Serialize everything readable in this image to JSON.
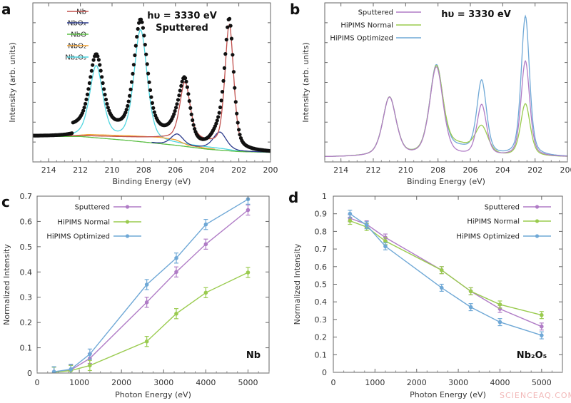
{
  "watermark": "SCIENCEAQ.COM",
  "chart_data": [
    {
      "panel": "a",
      "type": "line",
      "xlabel": "Binding Energy (eV)",
      "ylabel": "Intensity (arb. units)",
      "xlim": [
        215,
        200
      ],
      "x_reversed": true,
      "ylim": [
        0,
        1
      ],
      "x_ticks": [
        "214",
        "212",
        "210",
        "208",
        "206",
        "204",
        "202",
        "200"
      ],
      "annotations": [
        "hυ = 3330 eV",
        "Sputtered"
      ],
      "grid": false,
      "legend": "top-left",
      "measured_markers": {
        "color": "#111111",
        "style": "filled circles"
      },
      "series": [
        {
          "name": "Nb",
          "color": "#c0504d",
          "range": [
            215,
            200
          ],
          "baseline": [
            [
              215,
              0.16
            ],
            [
              212,
              0.165
            ],
            [
              207,
              0.15
            ],
            [
              204.5,
              0.13
            ],
            [
              202,
              0.065
            ],
            [
              200,
              0.06
            ]
          ],
          "peaks": [
            [
              205.4,
              0.36,
              0.33
            ],
            [
              202.6,
              0.78,
              0.28
            ]
          ]
        },
        {
          "name": "NbOₓ",
          "color": "#2b3a8c",
          "range": [
            207.5,
            200
          ],
          "baseline": [
            [
              207.5,
              0.12
            ],
            [
              206,
              0.1
            ],
            [
              204,
              0.085
            ],
            [
              202,
              0.065
            ],
            [
              200,
              0.06
            ]
          ],
          "peaks": [
            [
              205.9,
              0.075,
              0.4
            ],
            [
              203.2,
              0.11,
              0.42
            ]
          ]
        },
        {
          "name": "NbO",
          "color": "#5cbf45",
          "range": [
            215,
            200
          ],
          "baseline": [
            [
              215,
              0.16
            ],
            [
              212,
              0.16
            ],
            [
              209,
              0.135
            ],
            [
              206,
              0.105
            ],
            [
              204,
              0.08
            ],
            [
              202,
              0.065
            ],
            [
              200,
              0.06
            ]
          ],
          "peaks": []
        },
        {
          "name": "NbO₂",
          "color": "#f0a030",
          "range": [
            212.5,
            203.5
          ],
          "baseline": [
            [
              212.5,
              0.165
            ],
            [
              211.5,
              0.172
            ],
            [
              209,
              0.165
            ],
            [
              207,
              0.155
            ],
            [
              206,
              0.14
            ],
            [
              205.2,
              0.105
            ],
            [
              204,
              0.085
            ],
            [
              203.5,
              0.08
            ]
          ],
          "peaks": []
        },
        {
          "name": "Nb₂O₅",
          "color": "#4fd6e0",
          "range": [
            215,
            200
          ],
          "baseline": [
            [
              215,
              0.16
            ],
            [
              212,
              0.155
            ],
            [
              209,
              0.13
            ],
            [
              206,
              0.11
            ],
            [
              203,
              0.08
            ],
            [
              202,
              0.065
            ],
            [
              200,
              0.06
            ]
          ],
          "peaks": [
            [
              211.0,
              0.45,
              0.42
            ],
            [
              208.2,
              0.7,
              0.42
            ]
          ]
        }
      ]
    },
    {
      "panel": "b",
      "type": "line",
      "xlabel": "Binding Energy (eV)",
      "ylabel": "Intensity (arb. units)",
      "xlim": [
        215,
        200
      ],
      "x_reversed": true,
      "ylim": [
        0,
        1
      ],
      "x_ticks": [
        "214",
        "212",
        "210",
        "208",
        "206",
        "204",
        "202",
        "200"
      ],
      "annotations": [
        "hυ = 3330 eV"
      ],
      "grid": false,
      "legend": "top-left",
      "series": [
        {
          "name": "Sputtered",
          "color": "#b07cc6",
          "baseline": [
            [
              215,
              0.03
            ],
            [
              200,
              0.03
            ]
          ],
          "peaks": [
            [
              211.0,
              0.37,
              0.42
            ],
            [
              208.1,
              0.56,
              0.42
            ],
            [
              205.3,
              0.32,
              0.3
            ],
            [
              202.6,
              0.6,
              0.27
            ]
          ]
        },
        {
          "name": "HiPIMS Normal",
          "color": "#9acb4f",
          "baseline": [
            [
              215,
              0.03
            ],
            [
              200,
              0.03
            ]
          ],
          "peaks": [
            [
              211.0,
              0.37,
              0.42
            ],
            [
              208.1,
              0.55,
              0.42
            ],
            [
              206.7,
              0.06,
              0.9
            ],
            [
              205.3,
              0.17,
              0.4
            ],
            [
              202.6,
              0.33,
              0.3
            ]
          ]
        },
        {
          "name": "HiPIMS Optimized",
          "color": "#6fa8d6",
          "baseline": [
            [
              215,
              0.03
            ],
            [
              200,
              0.03
            ]
          ],
          "peaks": [
            [
              211.0,
              0.37,
              0.42
            ],
            [
              208.1,
              0.56,
              0.42
            ],
            [
              206.7,
              0.04,
              0.9
            ],
            [
              205.3,
              0.46,
              0.3
            ],
            [
              202.6,
              0.88,
              0.26
            ]
          ]
        }
      ]
    },
    {
      "panel": "c",
      "type": "line",
      "xlabel": "Photon Energy (eV)",
      "ylabel": "Normalized Intensity",
      "xlim": [
        0,
        5500
      ],
      "ylim": [
        0,
        0.7
      ],
      "x_ticks": [
        "0",
        "1000",
        "2000",
        "3000",
        "4000",
        "5000"
      ],
      "y_ticks": [
        "0",
        "0.1",
        "0.2",
        "0.3",
        "0.4",
        "0.5",
        "0.6",
        "0.7"
      ],
      "annotations": [
        "Nb"
      ],
      "grid": false,
      "legend": "top-left",
      "x": [
        400,
        800,
        1250,
        2600,
        3300,
        4000,
        5000
      ],
      "series": [
        {
          "name": "Sputtered",
          "color": "#b07cc6",
          "values": [
            0.005,
            0.012,
            0.058,
            0.28,
            0.4,
            0.51,
            0.645
          ],
          "error": 0.02
        },
        {
          "name": "HiPIMS Normal",
          "color": "#9acb4f",
          "values": [
            0.003,
            0.01,
            0.03,
            0.125,
            0.235,
            0.318,
            0.398
          ],
          "error": 0.02
        },
        {
          "name": "HiPIMS Optimized",
          "color": "#6fa8d6",
          "values": [
            0.005,
            0.015,
            0.075,
            0.35,
            0.455,
            0.588,
            0.688
          ],
          "error": 0.02
        }
      ]
    },
    {
      "panel": "d",
      "type": "line",
      "xlabel": "Photon Energy (eV)",
      "ylabel": "Normalized Intensity",
      "xlim": [
        0,
        5500
      ],
      "ylim": [
        0,
        1
      ],
      "x_ticks": [
        "0",
        "1000",
        "2000",
        "3000",
        "4000",
        "5000"
      ],
      "y_ticks": [
        "0",
        "0.1",
        "0.2",
        "0.3",
        "0.4",
        "0.5",
        "0.6",
        "0.7",
        "0.8",
        "0.9",
        "1"
      ],
      "annotations": [
        "Nb₂O₅"
      ],
      "grid": false,
      "legend": "top-right",
      "x": [
        400,
        800,
        1250,
        2600,
        3300,
        4000,
        5000
      ],
      "series": [
        {
          "name": "Sputtered",
          "color": "#b07cc6",
          "values": [
            0.875,
            0.84,
            0.765,
            0.58,
            0.46,
            0.36,
            0.26
          ],
          "error": 0.02
        },
        {
          "name": "HiPIMS Normal",
          "color": "#9acb4f",
          "values": [
            0.86,
            0.825,
            0.745,
            0.58,
            0.46,
            0.385,
            0.325
          ],
          "error": 0.02
        },
        {
          "name": "HiPIMS Optimized",
          "color": "#6fa8d6",
          "values": [
            0.9,
            0.835,
            0.715,
            0.48,
            0.37,
            0.285,
            0.21
          ],
          "error": 0.02
        }
      ]
    }
  ]
}
